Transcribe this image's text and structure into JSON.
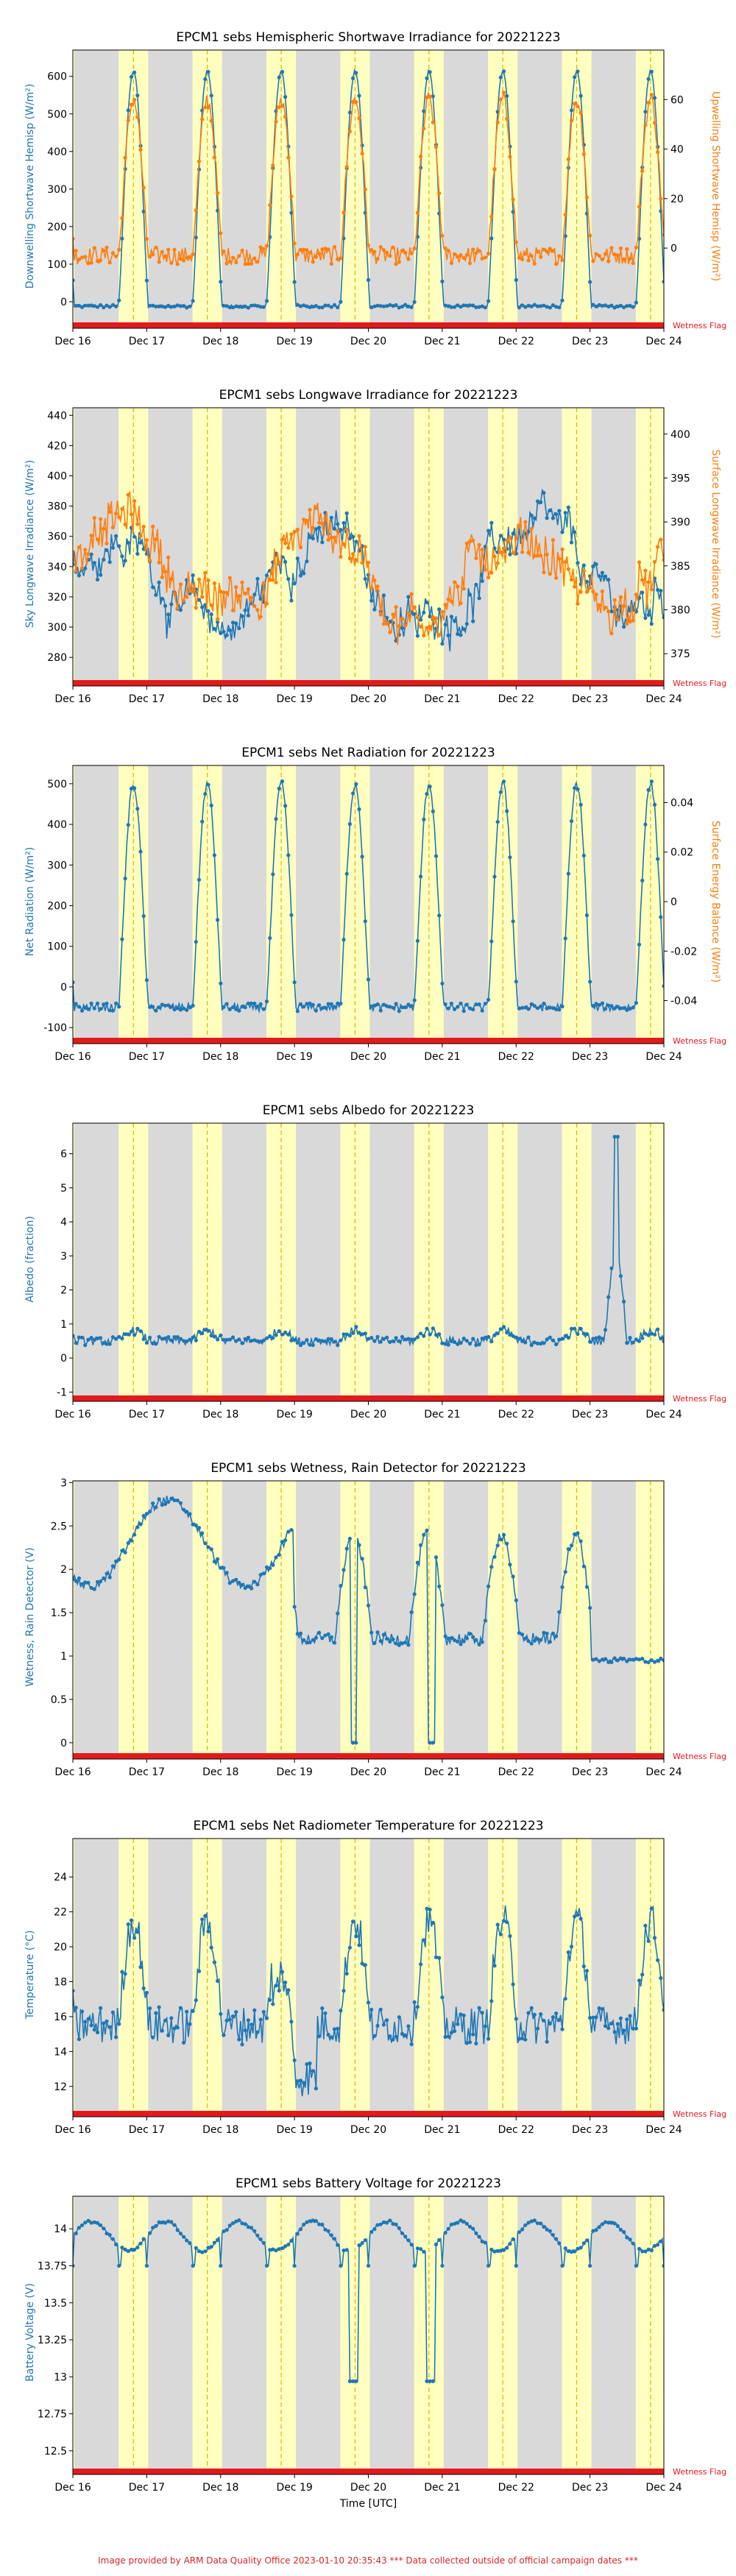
{
  "figure": {
    "xlabel": "Time [UTC]",
    "footer": "Image provided by ARM Data Quality Office 2023-01-10 20:35:43    *** Data collected outside of official campaign dates ***",
    "flag_label": "Wetness Flag",
    "x_ticks": [
      "Dec 16",
      "Dec 17",
      "Dec 18",
      "Dec 19",
      "Dec 20",
      "Dec 21",
      "Dec 22",
      "Dec 23",
      "Dec 24"
    ]
  },
  "colors": {
    "night": "#d9d9d9",
    "day": "#ffffc0",
    "noon_line": "#d4b800",
    "series_left": "#1f77b4",
    "series_right": "#ff7f0e",
    "flag": "#e31a1c"
  },
  "chart_data": [
    {
      "type": "line",
      "title": "EPCM1 sebs Hemispheric Shortwave Irradiance for 20221223",
      "ylabel": "Downwelling Shortwave Hemisp (W/m²)",
      "ylabel_right": "Upwelling Shortwave Hemisp (W/m²)",
      "ylim": [
        -55,
        670
      ],
      "yticks": [
        0,
        100,
        200,
        300,
        400,
        500,
        600
      ],
      "ylim_right": [
        -30,
        80
      ],
      "yticks_right": [
        0,
        20,
        40,
        60
      ],
      "series": [
        {
          "axis": "left",
          "pattern": "solar",
          "params": {
            "base": -12,
            "peak": 615,
            "jitter": 8
          }
        },
        {
          "axis": "right",
          "pattern": "solar",
          "params": {
            "base": -3,
            "peak": 60,
            "jitter": 7
          }
        }
      ]
    },
    {
      "type": "line",
      "title": "EPCM1 sebs Longwave Irradiance for 20221223",
      "ylabel": "Sky Longwave Irradiance (W/m²)",
      "ylabel_right": "Surface Longwave Irradiance (W/m²)",
      "ylim": [
        265,
        445
      ],
      "yticks": [
        280,
        300,
        320,
        340,
        360,
        380,
        400,
        420,
        440
      ],
      "ylim_right": [
        372,
        403
      ],
      "yticks_right": [
        375,
        380,
        385,
        390,
        395,
        400
      ],
      "series": [
        {
          "axis": "left",
          "pattern": "wander",
          "params": {
            "base": 330,
            "amp": 40,
            "jitter": 18
          }
        },
        {
          "axis": "right",
          "pattern": "wander",
          "params": {
            "base": 385,
            "amp": 6,
            "jitter": 4
          }
        }
      ]
    },
    {
      "type": "line",
      "title": "EPCM1 sebs Net Radiation for 20221223",
      "ylabel": "Net Radiation (W/m²)",
      "ylabel_right": "Surface Energy Balance (W/m²)",
      "ylim": [
        -125,
        545
      ],
      "yticks": [
        -100,
        0,
        100,
        200,
        300,
        400,
        500
      ],
      "ylim_right": [
        -0.055,
        0.055
      ],
      "yticks_right": [
        -0.04,
        -0.02,
        0.0,
        0.02,
        0.04
      ],
      "series": [
        {
          "axis": "left",
          "pattern": "solar",
          "params": {
            "base": -50,
            "peak": 500,
            "jitter": 20
          }
        }
      ]
    },
    {
      "type": "line",
      "title": "EPCM1 sebs Albedo for 20221223",
      "ylabel": "Albedo (fraction)",
      "ylim": [
        -1.1,
        6.9
      ],
      "yticks": [
        -1,
        0,
        1,
        2,
        3,
        4,
        5,
        6
      ],
      "series": [
        {
          "axis": "left",
          "pattern": "albedo",
          "params": {
            "base": 0.5,
            "jitter": 0.25
          }
        }
      ]
    },
    {
      "type": "line",
      "title": "EPCM1 sebs Wetness, Rain Detector for 20221223",
      "ylabel": "Wetness, Rain Detector (V)",
      "ylim": [
        -0.12,
        3.02
      ],
      "yticks": [
        0.0,
        0.5,
        1.0,
        1.5,
        2.0,
        2.5,
        3.0
      ],
      "series": [
        {
          "axis": "left",
          "pattern": "wetness",
          "params": {}
        }
      ]
    },
    {
      "type": "line",
      "title": "EPCM1 sebs Net Radiometer Temperature for 20221223",
      "ylabel": "Temperature (°C)",
      "ylim": [
        10.6,
        26.2
      ],
      "yticks": [
        12,
        14,
        16,
        18,
        20,
        22,
        24
      ],
      "series": [
        {
          "axis": "left",
          "pattern": "temp",
          "params": {}
        }
      ]
    },
    {
      "type": "line",
      "title": "EPCM1 sebs Battery Voltage for 20221223",
      "ylabel": "Battery Voltage (V)",
      "ylim": [
        12.38,
        14.22
      ],
      "yticks": [
        12.5,
        12.75,
        13.0,
        13.25,
        13.5,
        13.75,
        14.0
      ],
      "series": [
        {
          "axis": "left",
          "pattern": "battery",
          "params": {}
        }
      ]
    }
  ]
}
